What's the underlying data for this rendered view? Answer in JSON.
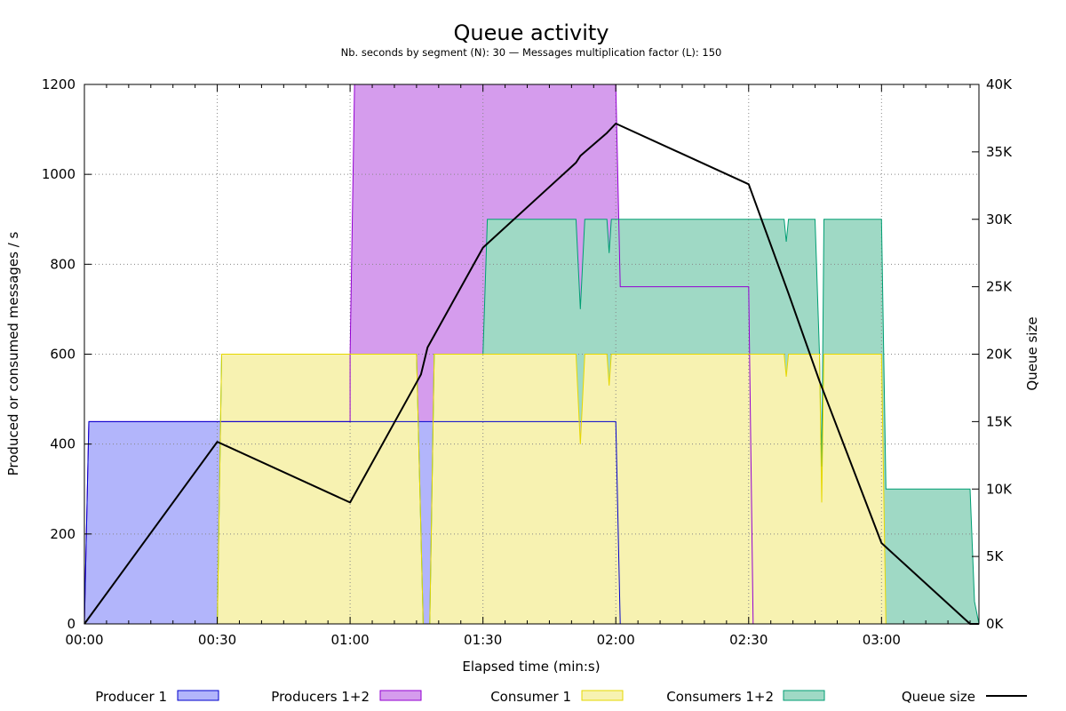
{
  "chart_data": {
    "type": "area",
    "title": "Queue activity",
    "subtitle": "Nb. seconds by segment (N): 30  —  Messages multiplication factor (L): 150",
    "xlabel": "Elapsed time (min:s)",
    "ylabel": "Produced or consumed messages / s",
    "y2label": "Queue size",
    "xlim": [
      0,
      202
    ],
    "ylim": [
      0,
      1200
    ],
    "y2lim": [
      0,
      40000
    ],
    "grid": true,
    "legend_position": "bottom",
    "x_ticks": [
      {
        "value": 0,
        "label": "00:00"
      },
      {
        "value": 30,
        "label": "00:30"
      },
      {
        "value": 60,
        "label": "01:00"
      },
      {
        "value": 90,
        "label": "01:30"
      },
      {
        "value": 120,
        "label": "02:00"
      },
      {
        "value": 150,
        "label": "02:30"
      },
      {
        "value": 180,
        "label": "03:00"
      }
    ],
    "y_ticks": [
      {
        "value": 0,
        "label": "0"
      },
      {
        "value": 200,
        "label": "200"
      },
      {
        "value": 400,
        "label": "400"
      },
      {
        "value": 600,
        "label": "600"
      },
      {
        "value": 800,
        "label": "800"
      },
      {
        "value": 1000,
        "label": "1000"
      },
      {
        "value": 1200,
        "label": "1200"
      }
    ],
    "y2_ticks": [
      {
        "value": 0,
        "label": "0K"
      },
      {
        "value": 5000,
        "label": "5K"
      },
      {
        "value": 10000,
        "label": "10K"
      },
      {
        "value": 15000,
        "label": "15K"
      },
      {
        "value": 20000,
        "label": "20K"
      },
      {
        "value": 25000,
        "label": "25K"
      },
      {
        "value": 30000,
        "label": "30K"
      },
      {
        "value": 35000,
        "label": "35K"
      },
      {
        "value": 40000,
        "label": "40K"
      }
    ],
    "series": [
      {
        "name": "Producers 1+2",
        "kind": "area",
        "axis": "y",
        "fill": "#d59ced",
        "stroke": "#9400d3",
        "x": [
          0,
          1,
          60,
          60,
          61,
          120,
          121,
          150,
          151
        ],
        "y": [
          0,
          450,
          450,
          600,
          1200,
          1200,
          750,
          750,
          0
        ]
      },
      {
        "name": "Consumers 1+2",
        "kind": "area",
        "axis": "y",
        "fill": "#9fd9c5",
        "stroke": "#009e73",
        "x": [
          0,
          30,
          31,
          60,
          75,
          76.5,
          77,
          78,
          79,
          90,
          91,
          111,
          112,
          113,
          118,
          118.5,
          119,
          120,
          121,
          150,
          158,
          158.5,
          159,
          160,
          165,
          166,
          166.5,
          167,
          180,
          181,
          200,
          201,
          202
        ],
        "y": [
          0,
          0,
          600,
          600,
          600,
          0,
          0,
          0,
          600,
          600,
          900,
          900,
          700,
          900,
          900,
          825,
          900,
          900,
          900,
          900,
          900,
          850,
          900,
          900,
          900,
          600,
          350,
          900,
          900,
          300,
          300,
          50,
          0
        ]
      },
      {
        "name": "Producer 1",
        "kind": "area",
        "axis": "y",
        "fill": "#b2b5fb",
        "stroke": "#0000cd",
        "x": [
          0,
          1,
          120,
          121
        ],
        "y": [
          0,
          450,
          450,
          0
        ]
      },
      {
        "name": "Consumer 1",
        "kind": "area",
        "axis": "y",
        "fill": "#f7f2b1",
        "stroke": "#e6d800",
        "x": [
          0,
          30,
          31,
          60,
          75,
          76.5,
          77,
          78,
          79,
          111,
          112,
          113,
          118,
          118.5,
          119,
          120,
          121,
          158,
          158.5,
          159,
          165,
          166,
          166.5,
          167,
          180,
          181
        ],
        "y": [
          0,
          0,
          600,
          600,
          600,
          0,
          0,
          0,
          600,
          600,
          400,
          600,
          600,
          530,
          600,
          600,
          600,
          600,
          550,
          600,
          600,
          600,
          270,
          600,
          600,
          0
        ]
      },
      {
        "name": "Queue size",
        "kind": "line",
        "axis": "y2",
        "stroke": "#000000",
        "x": [
          0,
          30,
          60,
          76,
          77.5,
          90,
          111,
          112,
          118,
          120,
          150,
          159,
          166,
          180,
          200,
          202
        ],
        "y": [
          0,
          13500,
          9000,
          18500,
          20500,
          27900,
          34200,
          34700,
          36400,
          37100,
          32600,
          24500,
          18000,
          6000,
          0,
          0
        ]
      }
    ],
    "legend": [
      {
        "name": "Producer 1",
        "swatch": "box",
        "fill": "#b2b5fb",
        "stroke": "#0000cd"
      },
      {
        "name": "Producers 1+2",
        "swatch": "box",
        "fill": "#d59ced",
        "stroke": "#9400d3"
      },
      {
        "name": "Consumer 1",
        "swatch": "box",
        "fill": "#f7f2b1",
        "stroke": "#e6d800"
      },
      {
        "name": "Consumers 1+2",
        "swatch": "box",
        "fill": "#9fd9c5",
        "stroke": "#009e73"
      },
      {
        "name": "Queue size",
        "swatch": "line",
        "stroke": "#000000"
      }
    ]
  }
}
